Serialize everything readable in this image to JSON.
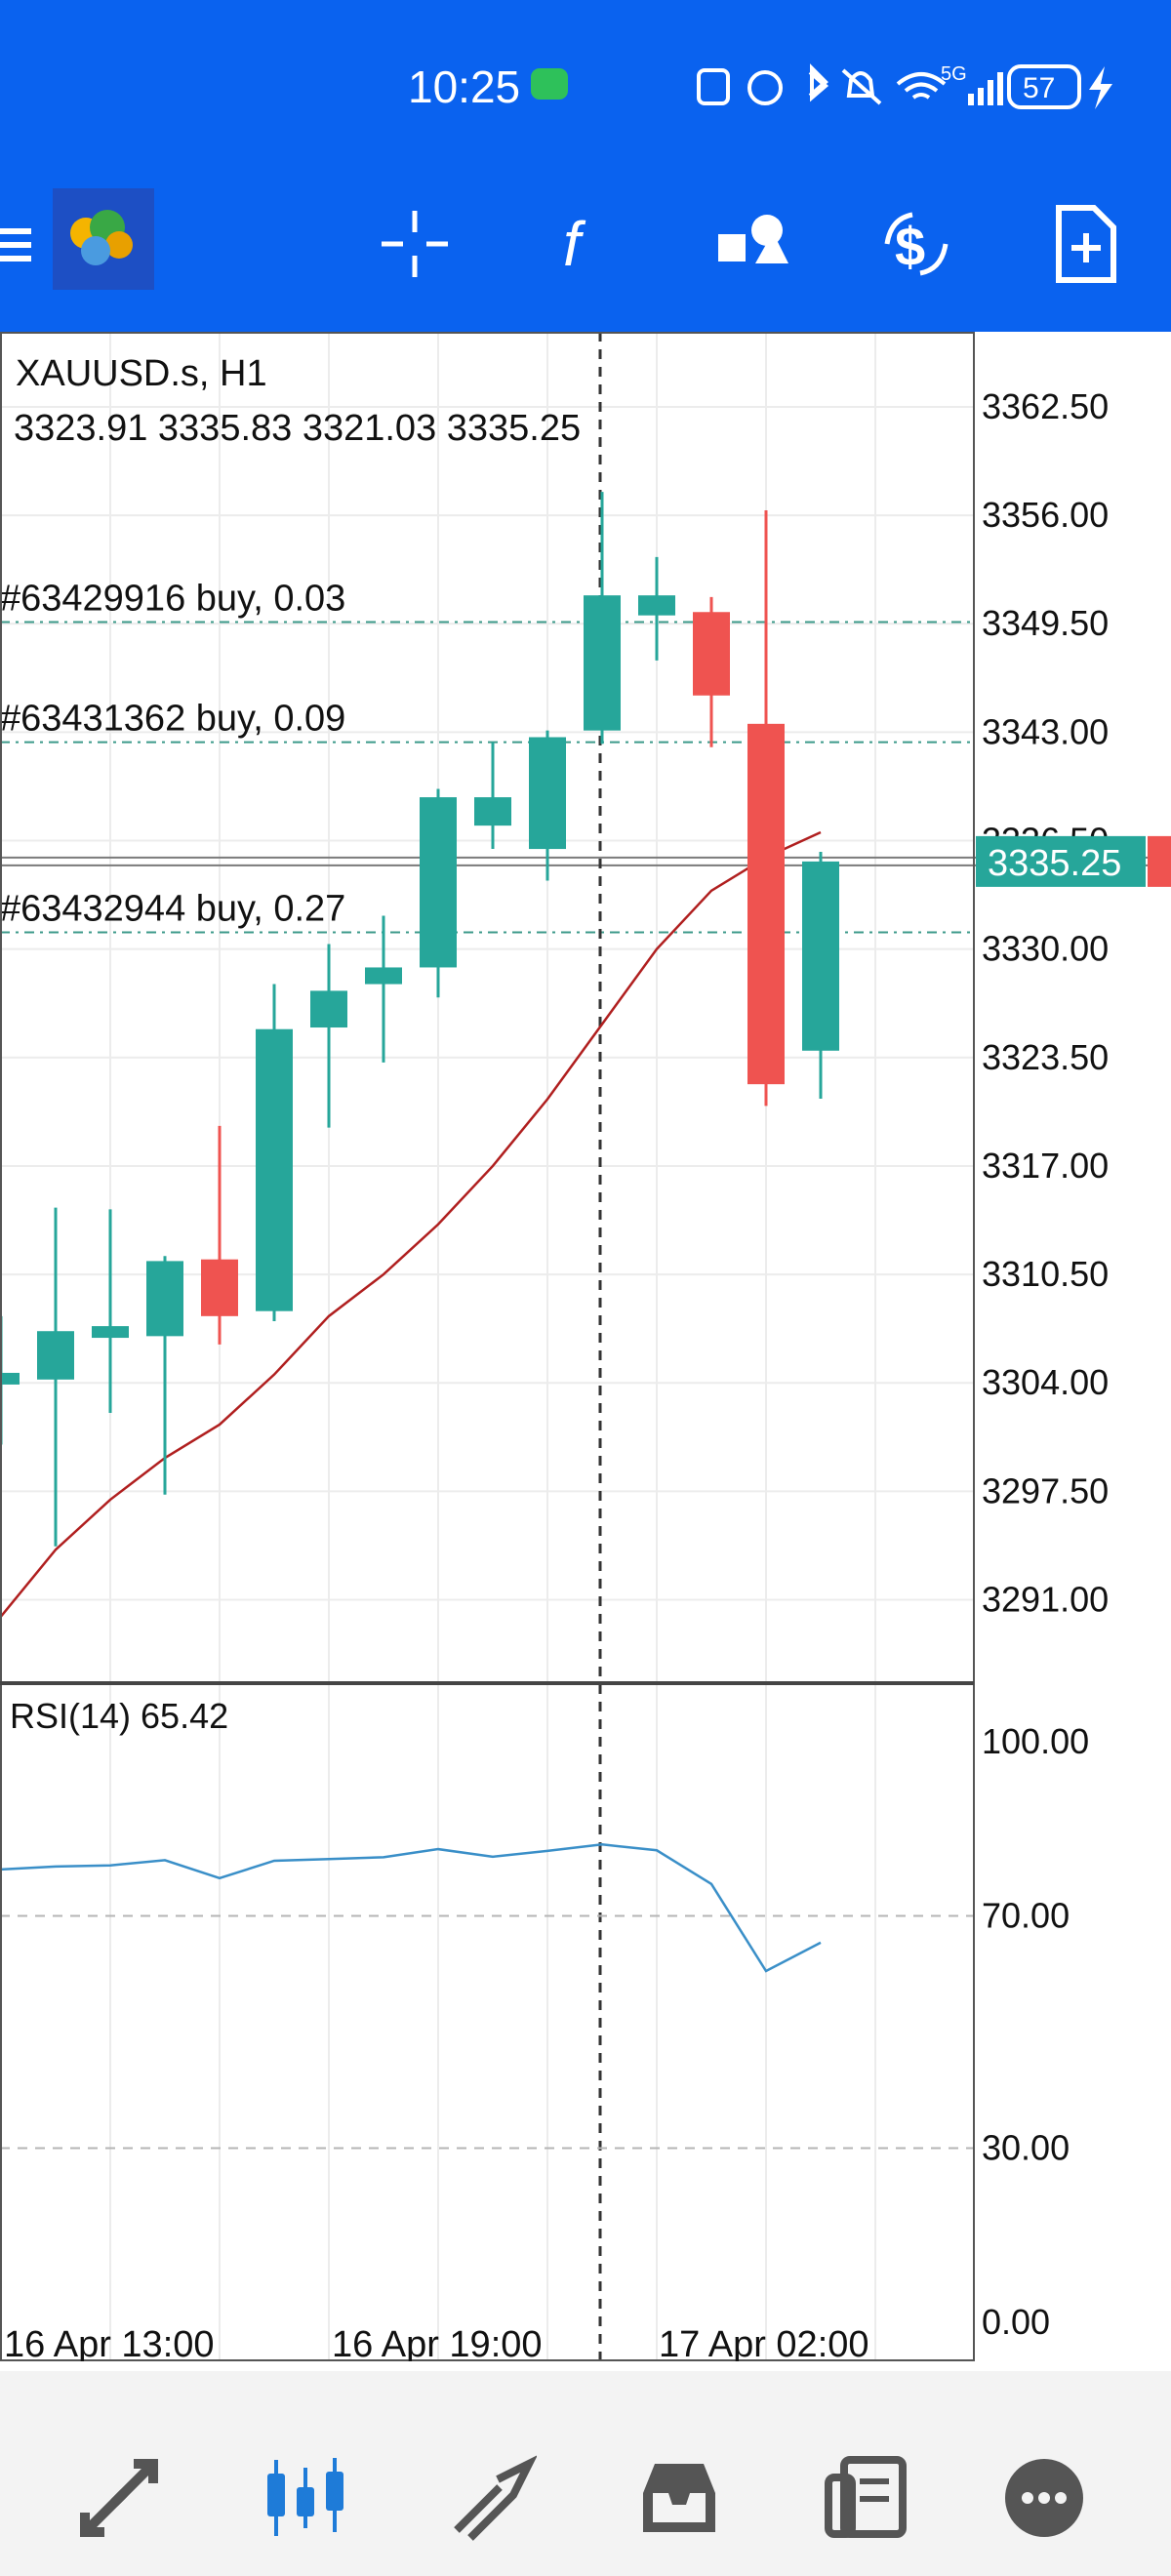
{
  "status_bar": {
    "time": "10:25",
    "battery": "57",
    "network": "5G"
  },
  "toolbar": {
    "items": [
      "menu-icon",
      "app-logo",
      "crosshair-icon",
      "indicators-icon",
      "objects-icon",
      "trade-icon",
      "new-order-icon"
    ]
  },
  "chart": {
    "symbol_label": "XAUUSD.s, H1",
    "ohlc_label": "3323.91 3335.83 3321.03 3335.25",
    "current_price": "3335.25",
    "orders": [
      {
        "label": "#63429916 buy, 0.03",
        "price": 3349.6
      },
      {
        "label": "#63431362 buy, 0.09",
        "price": 3342.4
      },
      {
        "label": "#63432944 buy, 0.27",
        "price": 3331.0
      }
    ],
    "price_ticks": [
      "3362.50",
      "3356.00",
      "3349.50",
      "3343.00",
      "3336.50",
      "3330.00",
      "3323.50",
      "3317.00",
      "3310.50",
      "3304.00",
      "3297.50",
      "3291.00"
    ],
    "time_ticks": [
      "16 Apr 13:00",
      "16 Apr 19:00",
      "17 Apr 02:00"
    ],
    "rsi_label": "RSI(14) 65.42",
    "rsi_ticks": [
      "100.00",
      "70.00",
      "30.00",
      "0.00"
    ],
    "colors": {
      "bull": "#26a69a",
      "bear": "#ef5350",
      "ma": "#b01f1f",
      "rsi": "#3a8fc8",
      "price_tag": "#26a69a"
    }
  },
  "chart_data": {
    "type": "candlestick",
    "symbol": "XAUUSD.s",
    "timeframe": "H1",
    "ylim": [
      3286,
      3367
    ],
    "candles": [
      {
        "o": 3303.9,
        "h": 3308.0,
        "l": 3300.3,
        "c": 3304.6
      },
      {
        "o": 3304.2,
        "h": 3314.5,
        "l": 3294.2,
        "c": 3307.1
      },
      {
        "o": 3306.7,
        "h": 3314.4,
        "l": 3302.2,
        "c": 3307.4
      },
      {
        "o": 3306.8,
        "h": 3311.6,
        "l": 3297.3,
        "c": 3311.3
      },
      {
        "o": 3311.4,
        "h": 3319.4,
        "l": 3306.3,
        "c": 3308.0
      },
      {
        "o": 3308.3,
        "h": 3327.9,
        "l": 3307.7,
        "c": 3325.2
      },
      {
        "o": 3325.3,
        "h": 3330.3,
        "l": 3319.3,
        "c": 3327.5
      },
      {
        "o": 3327.9,
        "h": 3332.0,
        "l": 3323.2,
        "c": 3328.9
      },
      {
        "o": 3328.9,
        "h": 3339.6,
        "l": 3327.1,
        "c": 3339.1
      },
      {
        "o": 3337.4,
        "h": 3342.4,
        "l": 3336.0,
        "c": 3339.1
      },
      {
        "o": 3336.0,
        "h": 3343.1,
        "l": 3334.1,
        "c": 3342.7
      },
      {
        "o": 3343.1,
        "h": 3357.4,
        "l": 3342.3,
        "c": 3351.2
      },
      {
        "o": 3350.0,
        "h": 3353.5,
        "l": 3347.3,
        "c": 3351.2
      },
      {
        "o": 3350.2,
        "h": 3351.1,
        "l": 3342.1,
        "c": 3345.2
      },
      {
        "o": 3343.5,
        "h": 3356.3,
        "l": 3320.6,
        "c": 3321.9
      },
      {
        "o": 3323.91,
        "h": 3335.83,
        "l": 3321.03,
        "c": 3335.25
      }
    ],
    "moving_average": [
      3290,
      3294,
      3297,
      3299.5,
      3301.5,
      3304.5,
      3308,
      3310.5,
      3313.5,
      3317,
      3321,
      3325.5,
      3330,
      3333.5,
      3335.5,
      3337
    ],
    "rsi": {
      "period": 14,
      "value": 65.42,
      "levels": [
        70,
        30
      ],
      "values": [
        78,
        78.5,
        78.7,
        79.6,
        76.5,
        79.5,
        79.8,
        80.1,
        81.5,
        80.2,
        81.2,
        82.3,
        81.3,
        75.5,
        60.5,
        65.4
      ]
    }
  }
}
